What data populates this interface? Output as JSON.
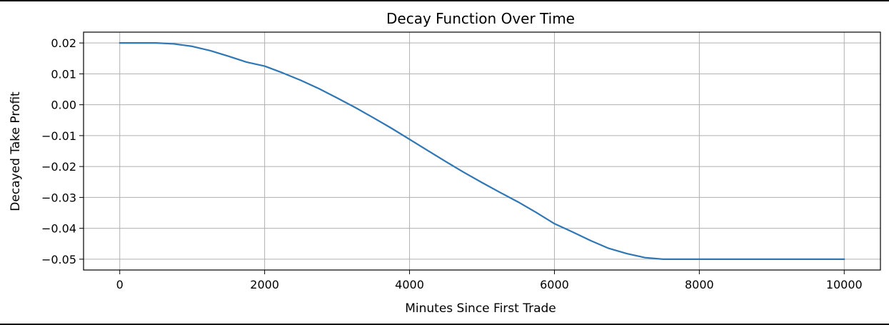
{
  "chart_data": {
    "type": "line",
    "title": "Decay Function Over Time",
    "xlabel": "Minutes Since First Trade",
    "ylabel": "Decayed Take Profit",
    "xlim": [
      -500,
      10500
    ],
    "ylim": [
      -0.0535,
      0.0235
    ],
    "xticks": [
      0,
      2000,
      4000,
      6000,
      8000,
      10000
    ],
    "xtick_labels": [
      "0",
      "2000",
      "4000",
      "6000",
      "8000",
      "10000"
    ],
    "yticks": [
      0.02,
      0.01,
      0.0,
      -0.01,
      -0.02,
      -0.03,
      -0.04,
      -0.05
    ],
    "ytick_labels": [
      "0.02",
      "0.01",
      "0.00",
      "−0.01",
      "−0.02",
      "−0.03",
      "−0.04",
      "−0.05"
    ],
    "grid": true,
    "color": "#2f77b4",
    "series": [
      {
        "x": [
          0,
          250,
          500,
          750,
          1000,
          1250,
          1500,
          1750,
          2000,
          2250,
          2500,
          2750,
          3000,
          3250,
          3500,
          3750,
          4000,
          4250,
          4500,
          4750,
          5000,
          5250,
          5500,
          5750,
          6000,
          6250,
          6500,
          6750,
          7000,
          7250,
          7500,
          7750,
          8000,
          8500,
          9000,
          9500,
          10000
        ],
        "y": [
          0.02,
          0.02,
          0.02,
          0.0197,
          0.0189,
          0.0175,
          0.0157,
          0.0138,
          0.0125,
          0.0103,
          0.0079,
          0.0052,
          0.0022,
          -0.0009,
          -0.0042,
          -0.0076,
          -0.0112,
          -0.0148,
          -0.0184,
          -0.0219,
          -0.0252,
          -0.0284,
          -0.0315,
          -0.0349,
          -0.0385,
          -0.0412,
          -0.044,
          -0.0465,
          -0.0482,
          -0.0495,
          -0.05,
          -0.05,
          -0.05,
          -0.05,
          -0.05,
          -0.05,
          -0.05
        ]
      }
    ]
  }
}
